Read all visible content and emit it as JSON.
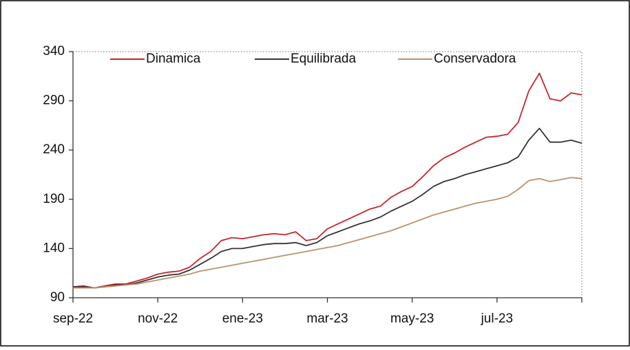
{
  "chart_data": {
    "type": "line",
    "categories": [
      "sep-22",
      null,
      null,
      null,
      null,
      null,
      null,
      null,
      "nov-22",
      null,
      null,
      null,
      null,
      null,
      null,
      null,
      "ene-23",
      null,
      null,
      null,
      null,
      null,
      null,
      null,
      "mar-23",
      null,
      null,
      null,
      null,
      null,
      null,
      null,
      "may-23",
      null,
      null,
      null,
      null,
      null,
      null,
      null,
      "jul-23",
      null,
      null,
      null,
      null,
      null,
      null,
      null,
      null
    ],
    "series": [
      {
        "name": "Dinamica",
        "color": "#c8232c",
        "values": [
          101,
          102,
          100,
          102,
          104,
          104,
          107,
          110,
          114,
          116,
          117,
          121,
          130,
          137,
          148,
          151,
          150,
          152,
          154,
          155,
          154,
          157,
          148,
          150,
          160,
          165,
          170,
          175,
          180,
          183,
          192,
          198,
          203,
          213,
          224,
          232,
          237,
          243,
          248,
          253,
          254,
          256,
          268,
          300,
          318,
          292,
          290,
          298,
          296
        ]
      },
      {
        "name": "Equilibrada",
        "color": "#333333",
        "values": [
          101,
          101,
          100,
          101,
          103,
          103,
          105,
          108,
          111,
          113,
          114,
          118,
          124,
          130,
          137,
          140,
          140,
          142,
          144,
          145,
          145,
          146,
          143,
          146,
          153,
          157,
          161,
          165,
          168,
          172,
          178,
          183,
          188,
          195,
          203,
          208,
          211,
          215,
          218,
          221,
          224,
          227,
          233,
          250,
          262,
          248,
          248,
          250,
          247
        ]
      },
      {
        "name": "Conservadora",
        "color": "#b8926a",
        "values": [
          100,
          100,
          100,
          101,
          102,
          103,
          104,
          106,
          108,
          110,
          112,
          114,
          117,
          119,
          121,
          123,
          125,
          127,
          129,
          131,
          133,
          135,
          137,
          139,
          141,
          143,
          146,
          149,
          152,
          155,
          158,
          162,
          166,
          170,
          174,
          177,
          180,
          183,
          186,
          188,
          190,
          193,
          200,
          209,
          211,
          208,
          210,
          212,
          211
        ]
      }
    ],
    "ylim": [
      90,
      340
    ],
    "yticks": [
      90,
      140,
      190,
      240,
      290,
      340
    ],
    "legend": "top"
  }
}
